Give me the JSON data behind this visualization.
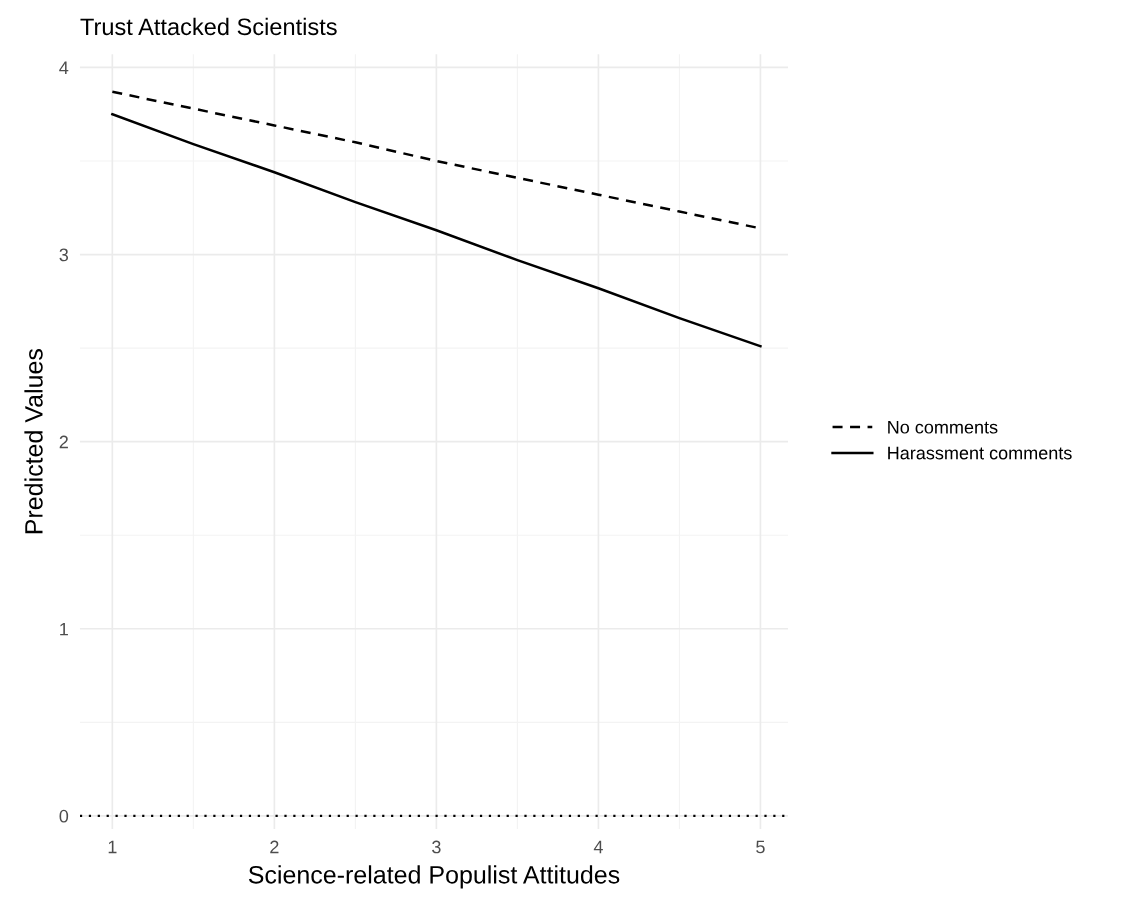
{
  "chart_data": {
    "type": "line",
    "title": "Trust Attacked Scientists",
    "xlabel": "Science-related Populist Attitudes",
    "ylabel": "Predicted Values",
    "x": [
      1,
      1.5,
      2,
      2.5,
      3,
      3.5,
      4,
      4.5,
      5
    ],
    "series": [
      {
        "name": "No comments",
        "color": "#000000",
        "line_style": "dashed",
        "values": [
          3.87,
          3.78,
          3.69,
          3.6,
          3.5,
          3.41,
          3.32,
          3.23,
          3.14
        ]
      },
      {
        "name": "Harassment comments",
        "color": "#000000",
        "line_style": "solid",
        "values": [
          3.75,
          3.59,
          3.44,
          3.28,
          3.13,
          2.97,
          2.82,
          2.66,
          2.51
        ]
      }
    ],
    "xlim": [
      0.8,
      5.17
    ],
    "ylim": [
      -0.07,
      4.07
    ],
    "xticks": [
      1,
      2,
      3,
      4,
      5
    ],
    "yticks": [
      0,
      1,
      2,
      3,
      4
    ],
    "ref_lines": [
      {
        "axis": "y",
        "value": 0,
        "color": "#000000",
        "line_style": "dotted"
      }
    ],
    "grid": true,
    "legend": "right"
  }
}
